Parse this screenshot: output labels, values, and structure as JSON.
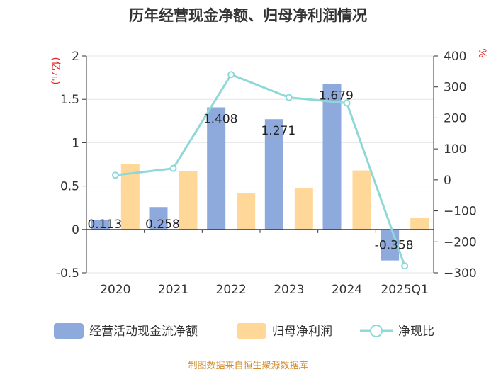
{
  "chart_data": {
    "type": "bar+line",
    "title": "历年经营现金净额、归母净利润情况",
    "categories": [
      "2020",
      "2021",
      "2022",
      "2023",
      "2024",
      "2025Q1"
    ],
    "series": [
      {
        "name": "经营活动现金流净额",
        "type": "bar",
        "axis": "left",
        "color": "#8eaadc",
        "values": [
          0.113,
          0.258,
          1.408,
          1.271,
          1.679,
          -0.358
        ],
        "labels": [
          "0.113",
          "0.258",
          "1.408",
          "1.271",
          "1.679",
          "-0.358"
        ]
      },
      {
        "name": "归母净利润",
        "type": "bar",
        "axis": "left",
        "color": "#ffd799",
        "values": [
          0.75,
          0.67,
          0.42,
          0.48,
          0.68,
          0.13
        ]
      },
      {
        "name": "净现比",
        "type": "line",
        "axis": "right",
        "color": "#8fd8d8",
        "values": [
          15,
          37,
          340,
          266,
          248,
          -278
        ]
      }
    ],
    "left_axis": {
      "unit": "(亿元)",
      "ylim": [
        -0.5,
        2
      ],
      "ticks": [
        -0.5,
        0,
        0.5,
        1,
        1.5,
        2
      ],
      "tick_labels": [
        "-0.5",
        "0",
        "0.5",
        "1",
        "1.5",
        "2"
      ]
    },
    "right_axis": {
      "unit": "%",
      "ylim": [
        -300,
        400
      ],
      "ticks": [
        -300,
        -200,
        -100,
        0,
        100,
        200,
        300,
        400
      ],
      "tick_labels": [
        "−300",
        "−200",
        "−100",
        "0",
        "100",
        "200",
        "300",
        "400"
      ]
    },
    "legend": [
      "经营活动现金流净额",
      "归母净利润",
      "净现比"
    ],
    "source": "制图数据来自恒生聚源数据库"
  }
}
